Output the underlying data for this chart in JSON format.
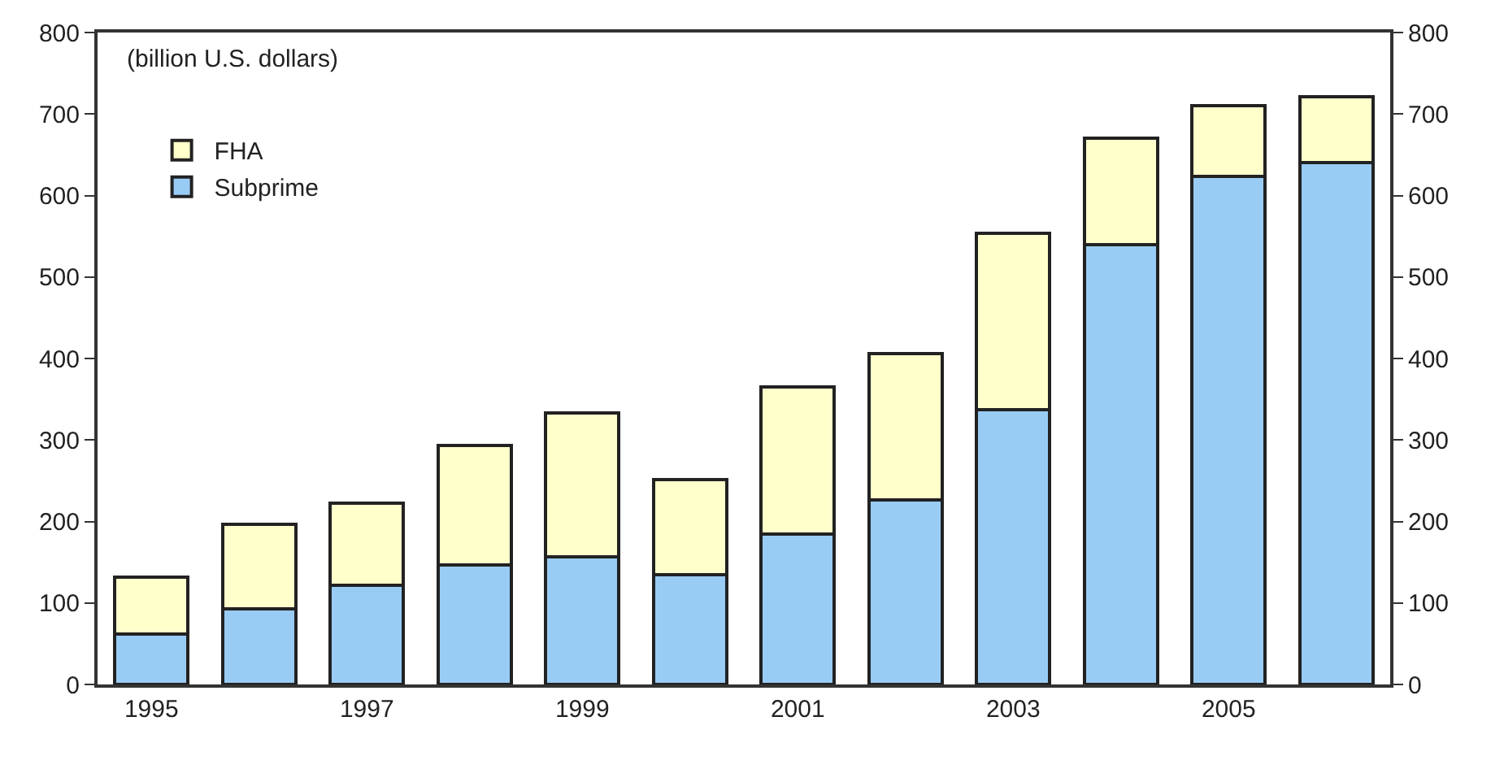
{
  "chart_data": {
    "type": "bar",
    "stacked": true,
    "categories": [
      "1995",
      null,
      "1997",
      null,
      "1999",
      null,
      "2001",
      null,
      "2003",
      null,
      "2005",
      null
    ],
    "series": [
      {
        "name": "Subprime",
        "color": "#99ccf5",
        "values": [
          62,
          93,
          122,
          147,
          157,
          135,
          185,
          226,
          337,
          540,
          623,
          640
        ]
      },
      {
        "name": "FHA",
        "color": "#ffffcc",
        "values": [
          70,
          104,
          100,
          146,
          176,
          116,
          180,
          180,
          217,
          130,
          87,
          81
        ]
      }
    ],
    "ylim": [
      0,
      800
    ],
    "yticks": [
      0,
      100,
      200,
      300,
      400,
      500,
      600,
      700,
      800
    ],
    "y2lim": [
      0,
      800
    ],
    "y2ticks": [
      0,
      100,
      200,
      300,
      400,
      500,
      600,
      700,
      800
    ],
    "annotations": [
      "(billion U.S. dollars)"
    ],
    "legend": "top left"
  }
}
